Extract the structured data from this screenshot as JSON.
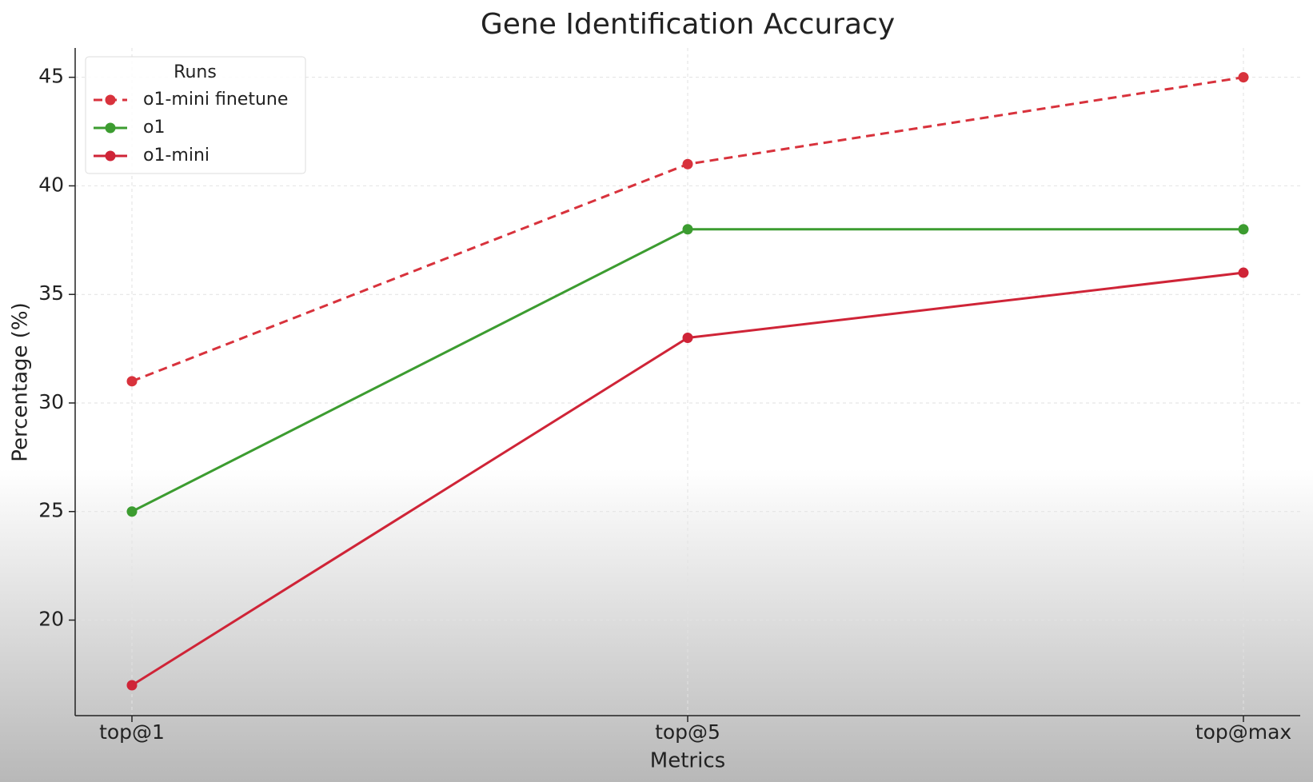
{
  "chart_data": {
    "type": "line",
    "title": "Gene Identification Accuracy",
    "x_label": "Metrics",
    "y_label": "Percentage (%)",
    "categories": [
      "top@1",
      "top@5",
      "top@max"
    ],
    "series": [
      {
        "name": "o1-mini finetune",
        "color": "#d8323c",
        "linestyle": "dashed",
        "values": [
          31,
          41,
          45
        ]
      },
      {
        "name": "o1",
        "color": "#3c9c30",
        "linestyle": "solid",
        "values": [
          25,
          38,
          38
        ]
      },
      {
        "name": "o1-mini",
        "color": "#cf2437",
        "linestyle": "solid",
        "values": [
          17,
          33,
          36
        ]
      }
    ],
    "legend_title": "Runs",
    "legend_position": "upper left",
    "ylim": [
      15.6,
      46.35
    ],
    "yticks": [
      20,
      25,
      30,
      35,
      40,
      45
    ],
    "grid": true
  }
}
